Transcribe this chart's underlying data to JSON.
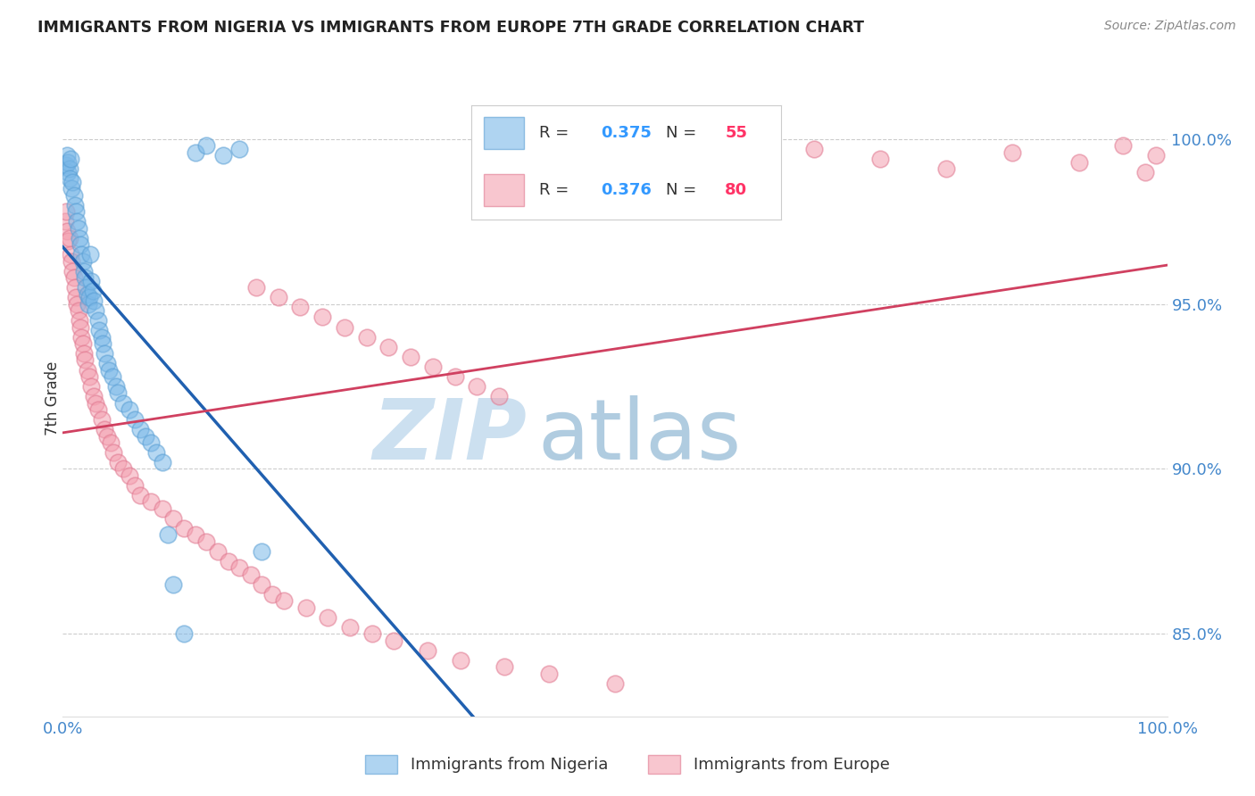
{
  "title": "IMMIGRANTS FROM NIGERIA VS IMMIGRANTS FROM EUROPE 7TH GRADE CORRELATION CHART",
  "source": "Source: ZipAtlas.com",
  "ylabel": "7th Grade",
  "nigeria_color": "#7bb8e8",
  "europe_color": "#f4a0b0",
  "nigeria_edge_color": "#5a9fd4",
  "europe_edge_color": "#e07890",
  "nigeria_line_color": "#2060b0",
  "europe_line_color": "#d04060",
  "nigeria_R": 0.375,
  "nigeria_N": 55,
  "europe_R": 0.376,
  "europe_N": 80,
  "watermark_ZIP_color": "#cce0f0",
  "watermark_atlas_color": "#b0cce0",
  "legend_R_color": "#3399ff",
  "legend_N_color": "#ff3366",
  "ytick_color": "#4488cc",
  "xtick_color": "#4488cc",
  "grid_color": "#cccccc",
  "title_color": "#222222",
  "source_color": "#888888",
  "ylabel_color": "#333333",
  "background_color": "#ffffff",
  "xlim": [
    0.0,
    1.0
  ],
  "ylim": [
    82.5,
    101.8
  ],
  "ytick_positions": [
    85.0,
    90.0,
    95.0,
    100.0
  ],
  "ytick_labels": [
    "85.0%",
    "90.0%",
    "95.0%",
    "100.0%"
  ],
  "xtick_positions": [
    0.0,
    1.0
  ],
  "xtick_labels": [
    "0.0%",
    "100.0%"
  ],
  "nigeria_x": [
    0.003,
    0.004,
    0.005,
    0.005,
    0.006,
    0.006,
    0.007,
    0.008,
    0.009,
    0.01,
    0.011,
    0.012,
    0.013,
    0.014,
    0.015,
    0.016,
    0.017,
    0.018,
    0.019,
    0.02,
    0.021,
    0.022,
    0.023,
    0.024,
    0.025,
    0.026,
    0.027,
    0.028,
    0.03,
    0.032,
    0.033,
    0.035,
    0.036,
    0.038,
    0.04,
    0.042,
    0.045,
    0.048,
    0.05,
    0.055,
    0.06,
    0.065,
    0.07,
    0.075,
    0.08,
    0.085,
    0.09,
    0.095,
    0.1,
    0.11,
    0.12,
    0.13,
    0.145,
    0.16,
    0.18
  ],
  "nigeria_y": [
    99.2,
    99.5,
    99.0,
    99.3,
    99.1,
    98.8,
    99.4,
    98.5,
    98.7,
    98.3,
    98.0,
    97.8,
    97.5,
    97.3,
    97.0,
    96.8,
    96.5,
    96.3,
    96.0,
    95.8,
    95.5,
    95.3,
    95.0,
    95.2,
    96.5,
    95.7,
    95.4,
    95.1,
    94.8,
    94.5,
    94.2,
    94.0,
    93.8,
    93.5,
    93.2,
    93.0,
    92.8,
    92.5,
    92.3,
    92.0,
    91.8,
    91.5,
    91.2,
    91.0,
    90.8,
    90.5,
    90.2,
    88.0,
    86.5,
    85.0,
    99.6,
    99.8,
    99.5,
    99.7,
    87.5
  ],
  "europe_x": [
    0.002,
    0.003,
    0.004,
    0.005,
    0.006,
    0.007,
    0.008,
    0.009,
    0.01,
    0.011,
    0.012,
    0.013,
    0.014,
    0.015,
    0.016,
    0.017,
    0.018,
    0.019,
    0.02,
    0.022,
    0.024,
    0.026,
    0.028,
    0.03,
    0.032,
    0.035,
    0.038,
    0.04,
    0.043,
    0.046,
    0.05,
    0.055,
    0.06,
    0.065,
    0.07,
    0.08,
    0.09,
    0.1,
    0.11,
    0.12,
    0.13,
    0.14,
    0.15,
    0.16,
    0.17,
    0.18,
    0.19,
    0.2,
    0.22,
    0.24,
    0.26,
    0.28,
    0.3,
    0.33,
    0.36,
    0.4,
    0.44,
    0.5,
    0.56,
    0.62,
    0.68,
    0.74,
    0.8,
    0.86,
    0.92,
    0.96,
    0.98,
    0.99,
    0.175,
    0.195,
    0.215,
    0.235,
    0.255,
    0.275,
    0.295,
    0.315,
    0.335,
    0.355,
    0.375,
    0.395
  ],
  "europe_y": [
    97.5,
    97.8,
    97.2,
    96.9,
    97.0,
    96.5,
    96.3,
    96.0,
    95.8,
    95.5,
    95.2,
    95.0,
    94.8,
    94.5,
    94.3,
    94.0,
    93.8,
    93.5,
    93.3,
    93.0,
    92.8,
    92.5,
    92.2,
    92.0,
    91.8,
    91.5,
    91.2,
    91.0,
    90.8,
    90.5,
    90.2,
    90.0,
    89.8,
    89.5,
    89.2,
    89.0,
    88.8,
    88.5,
    88.2,
    88.0,
    87.8,
    87.5,
    87.2,
    87.0,
    86.8,
    86.5,
    86.2,
    86.0,
    85.8,
    85.5,
    85.2,
    85.0,
    84.8,
    84.5,
    84.2,
    84.0,
    83.8,
    83.5,
    99.5,
    99.2,
    99.7,
    99.4,
    99.1,
    99.6,
    99.3,
    99.8,
    99.0,
    99.5,
    95.5,
    95.2,
    94.9,
    94.6,
    94.3,
    94.0,
    93.7,
    93.4,
    93.1,
    92.8,
    92.5,
    92.2
  ]
}
